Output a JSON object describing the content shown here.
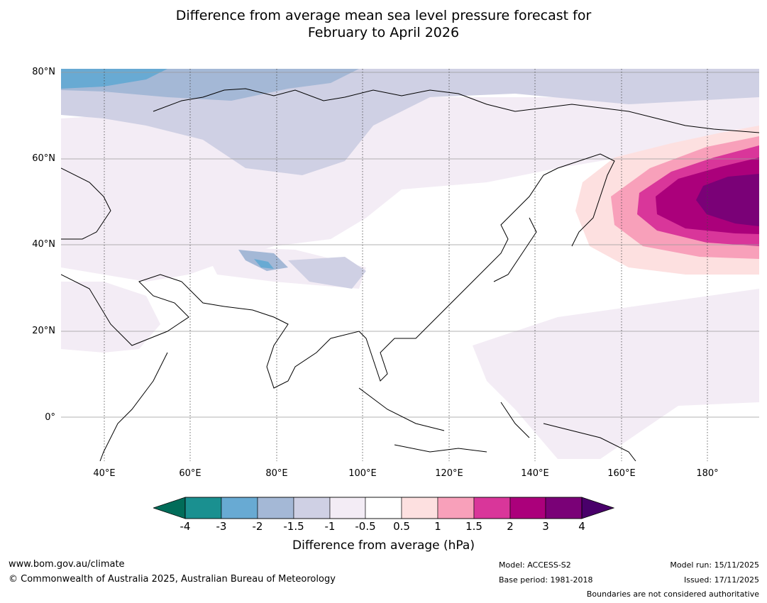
{
  "title_line1": "Difference from average mean sea level pressure forecast for",
  "title_line2": "February to April 2026",
  "map": {
    "lon_range": [
      30,
      192
    ],
    "lat_range": [
      -10,
      81
    ],
    "lat_labels": [
      {
        "lat": 80,
        "label": "80°N"
      },
      {
        "lat": 60,
        "label": "60°N"
      },
      {
        "lat": 40,
        "label": "40°N"
      },
      {
        "lat": 20,
        "label": "20°N"
      },
      {
        "lat": 0,
        "label": "0°"
      }
    ],
    "lon_labels": [
      {
        "lon": 40,
        "label": "40°E"
      },
      {
        "lon": 60,
        "label": "60°E"
      },
      {
        "lon": 80,
        "label": "80°E"
      },
      {
        "lon": 100,
        "label": "100°E"
      },
      {
        "lon": 120,
        "label": "120°E"
      },
      {
        "lon": 140,
        "label": "140°E"
      },
      {
        "lon": 160,
        "label": "160°E"
      },
      {
        "lon": 180,
        "label": "180°"
      }
    ]
  },
  "colorbar": {
    "label": "Difference from average (hPa)",
    "ticks": [
      "-4",
      "-3",
      "-2",
      "-1.5",
      "-1",
      "-0.5",
      "0.5",
      "1",
      "1.5",
      "2",
      "3",
      "4"
    ],
    "colors": [
      "#1a9090",
      "#68aad3",
      "#a4b8d6",
      "#cfd0e4",
      "#f3ecf5",
      "#ffffff",
      "#fde0e0",
      "#f8a0ba",
      "#d9369a",
      "#ab007b",
      "#7a0177"
    ],
    "under_color": "#016c59",
    "over_color": "#49006a"
  },
  "footer": {
    "website": "www.bom.gov.au/climate",
    "copyright": "© Commonwealth of Australia 2025, Australian Bureau of Meteorology",
    "model": "Model: ACCESS-S2",
    "base_period": "Base period: 1981-2018",
    "model_run": "Model run: 15/11/2025",
    "issued": "Issued: 17/11/2025",
    "disclaimer": "Boundaries are not considered authoritative"
  }
}
